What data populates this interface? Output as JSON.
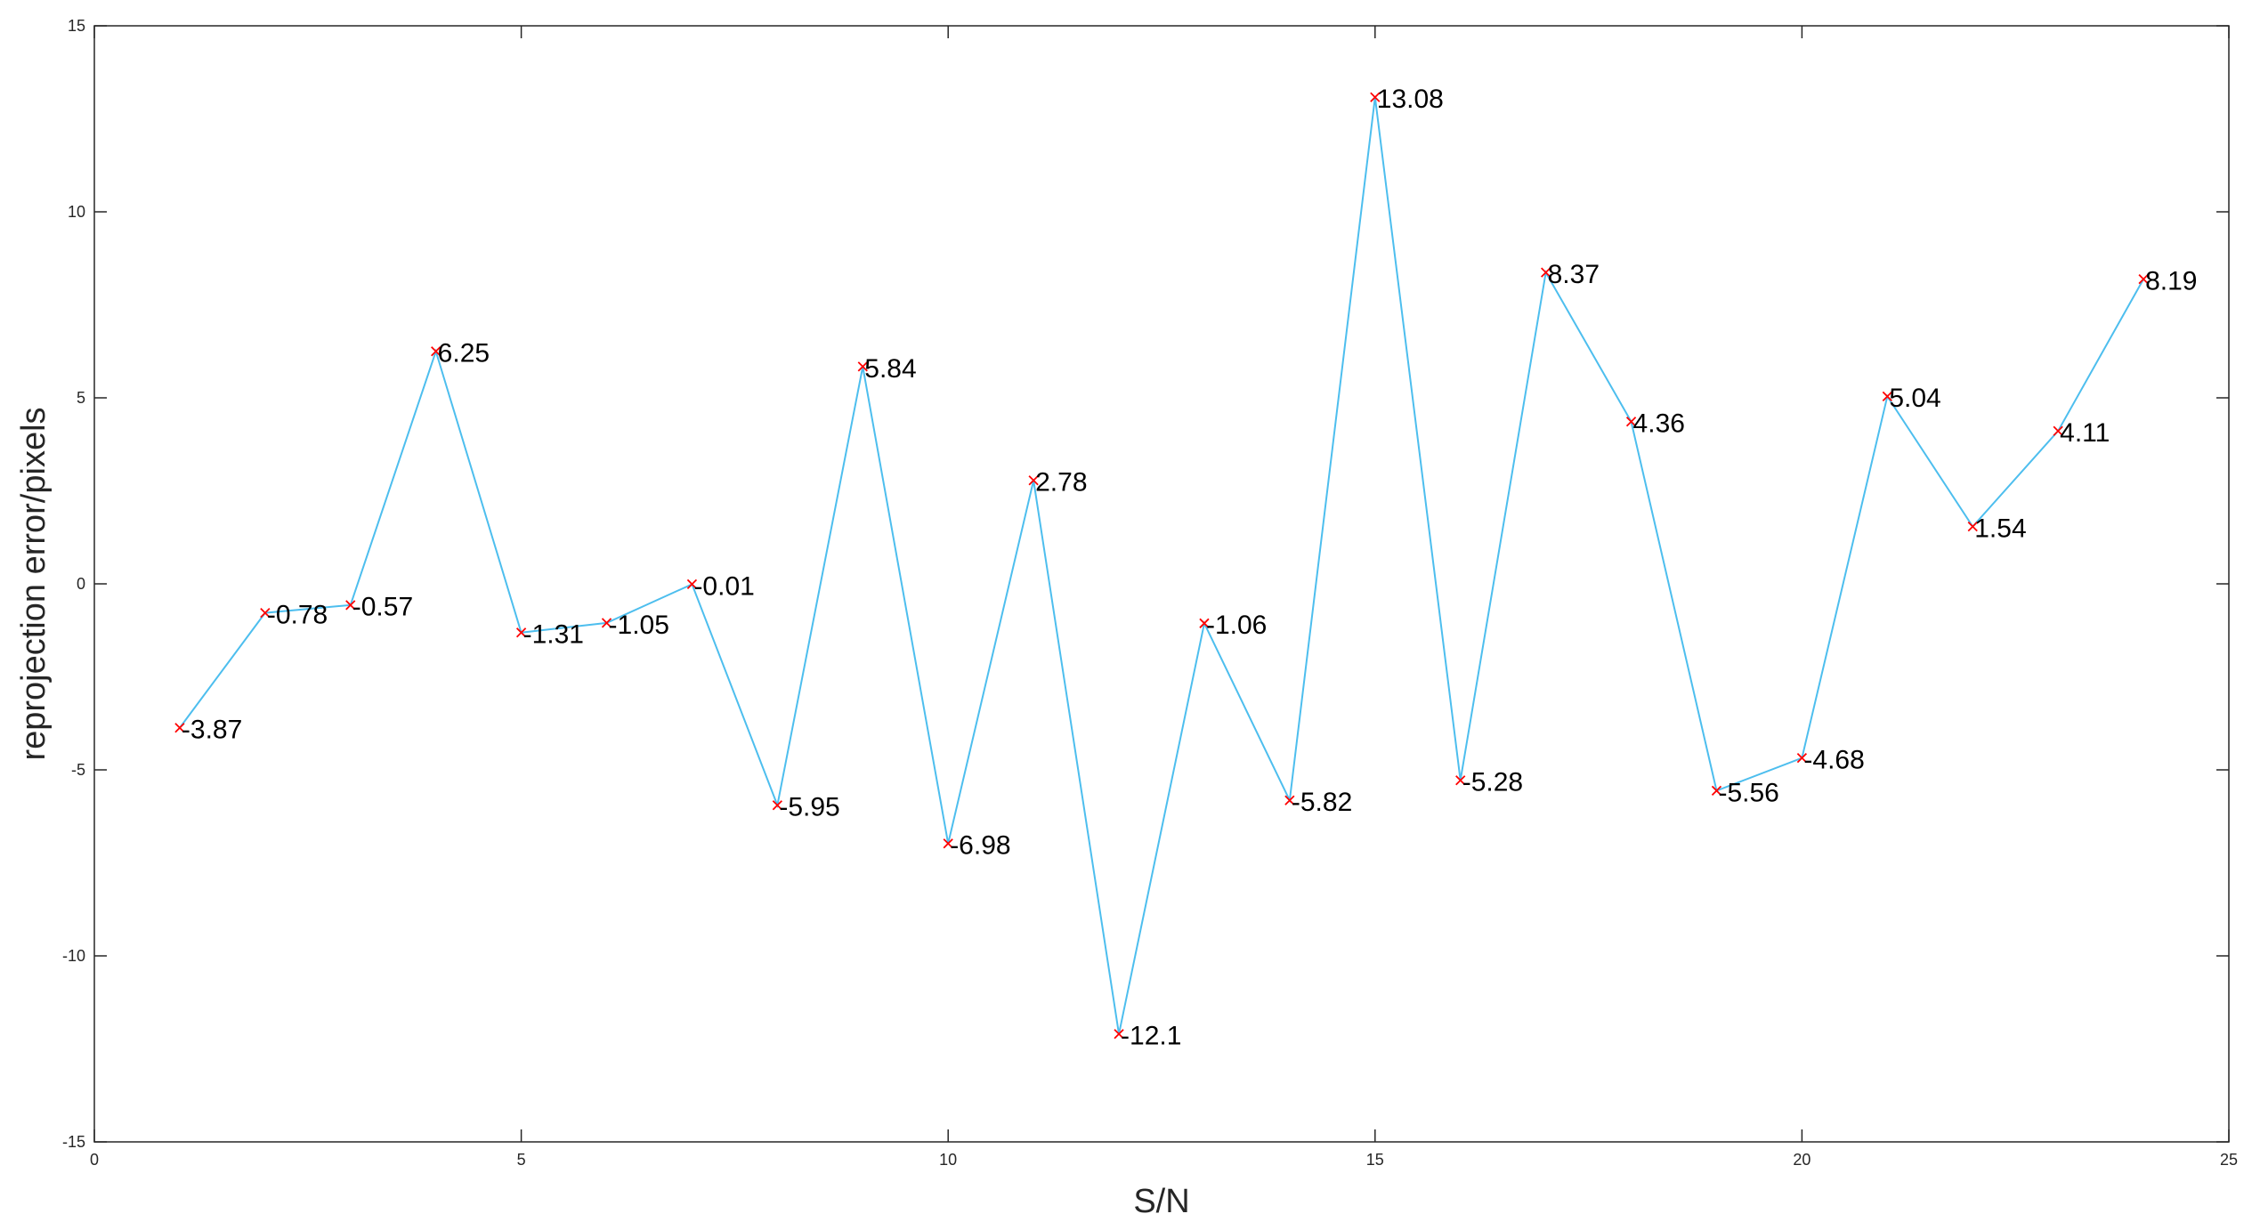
{
  "chart_data": {
    "type": "line",
    "xlabel": "S/N",
    "ylabel": "reprojection error/pixels",
    "x": [
      1,
      2,
      3,
      4,
      5,
      6,
      7,
      8,
      9,
      10,
      11,
      12,
      13,
      14,
      15,
      16,
      17,
      18,
      19,
      20,
      21,
      22,
      23,
      24
    ],
    "values": [
      -3.87,
      -0.78,
      -0.57,
      6.25,
      -1.31,
      -1.05,
      -0.01,
      -5.95,
      5.84,
      -6.98,
      2.78,
      -12.1,
      -1.06,
      -5.82,
      13.08,
      -5.28,
      8.37,
      4.36,
      -5.56,
      -4.68,
      5.04,
      1.54,
      4.11,
      8.19
    ],
    "color": "#4dbeee",
    "marker_color": "#ff0000",
    "xlim": [
      0,
      25
    ],
    "xticks": [
      0,
      5,
      10,
      15,
      20,
      25
    ],
    "ylim": [
      -15,
      15
    ],
    "yticks": [
      -15,
      -10,
      -5,
      0,
      5,
      10,
      15
    ],
    "grid": false
  }
}
